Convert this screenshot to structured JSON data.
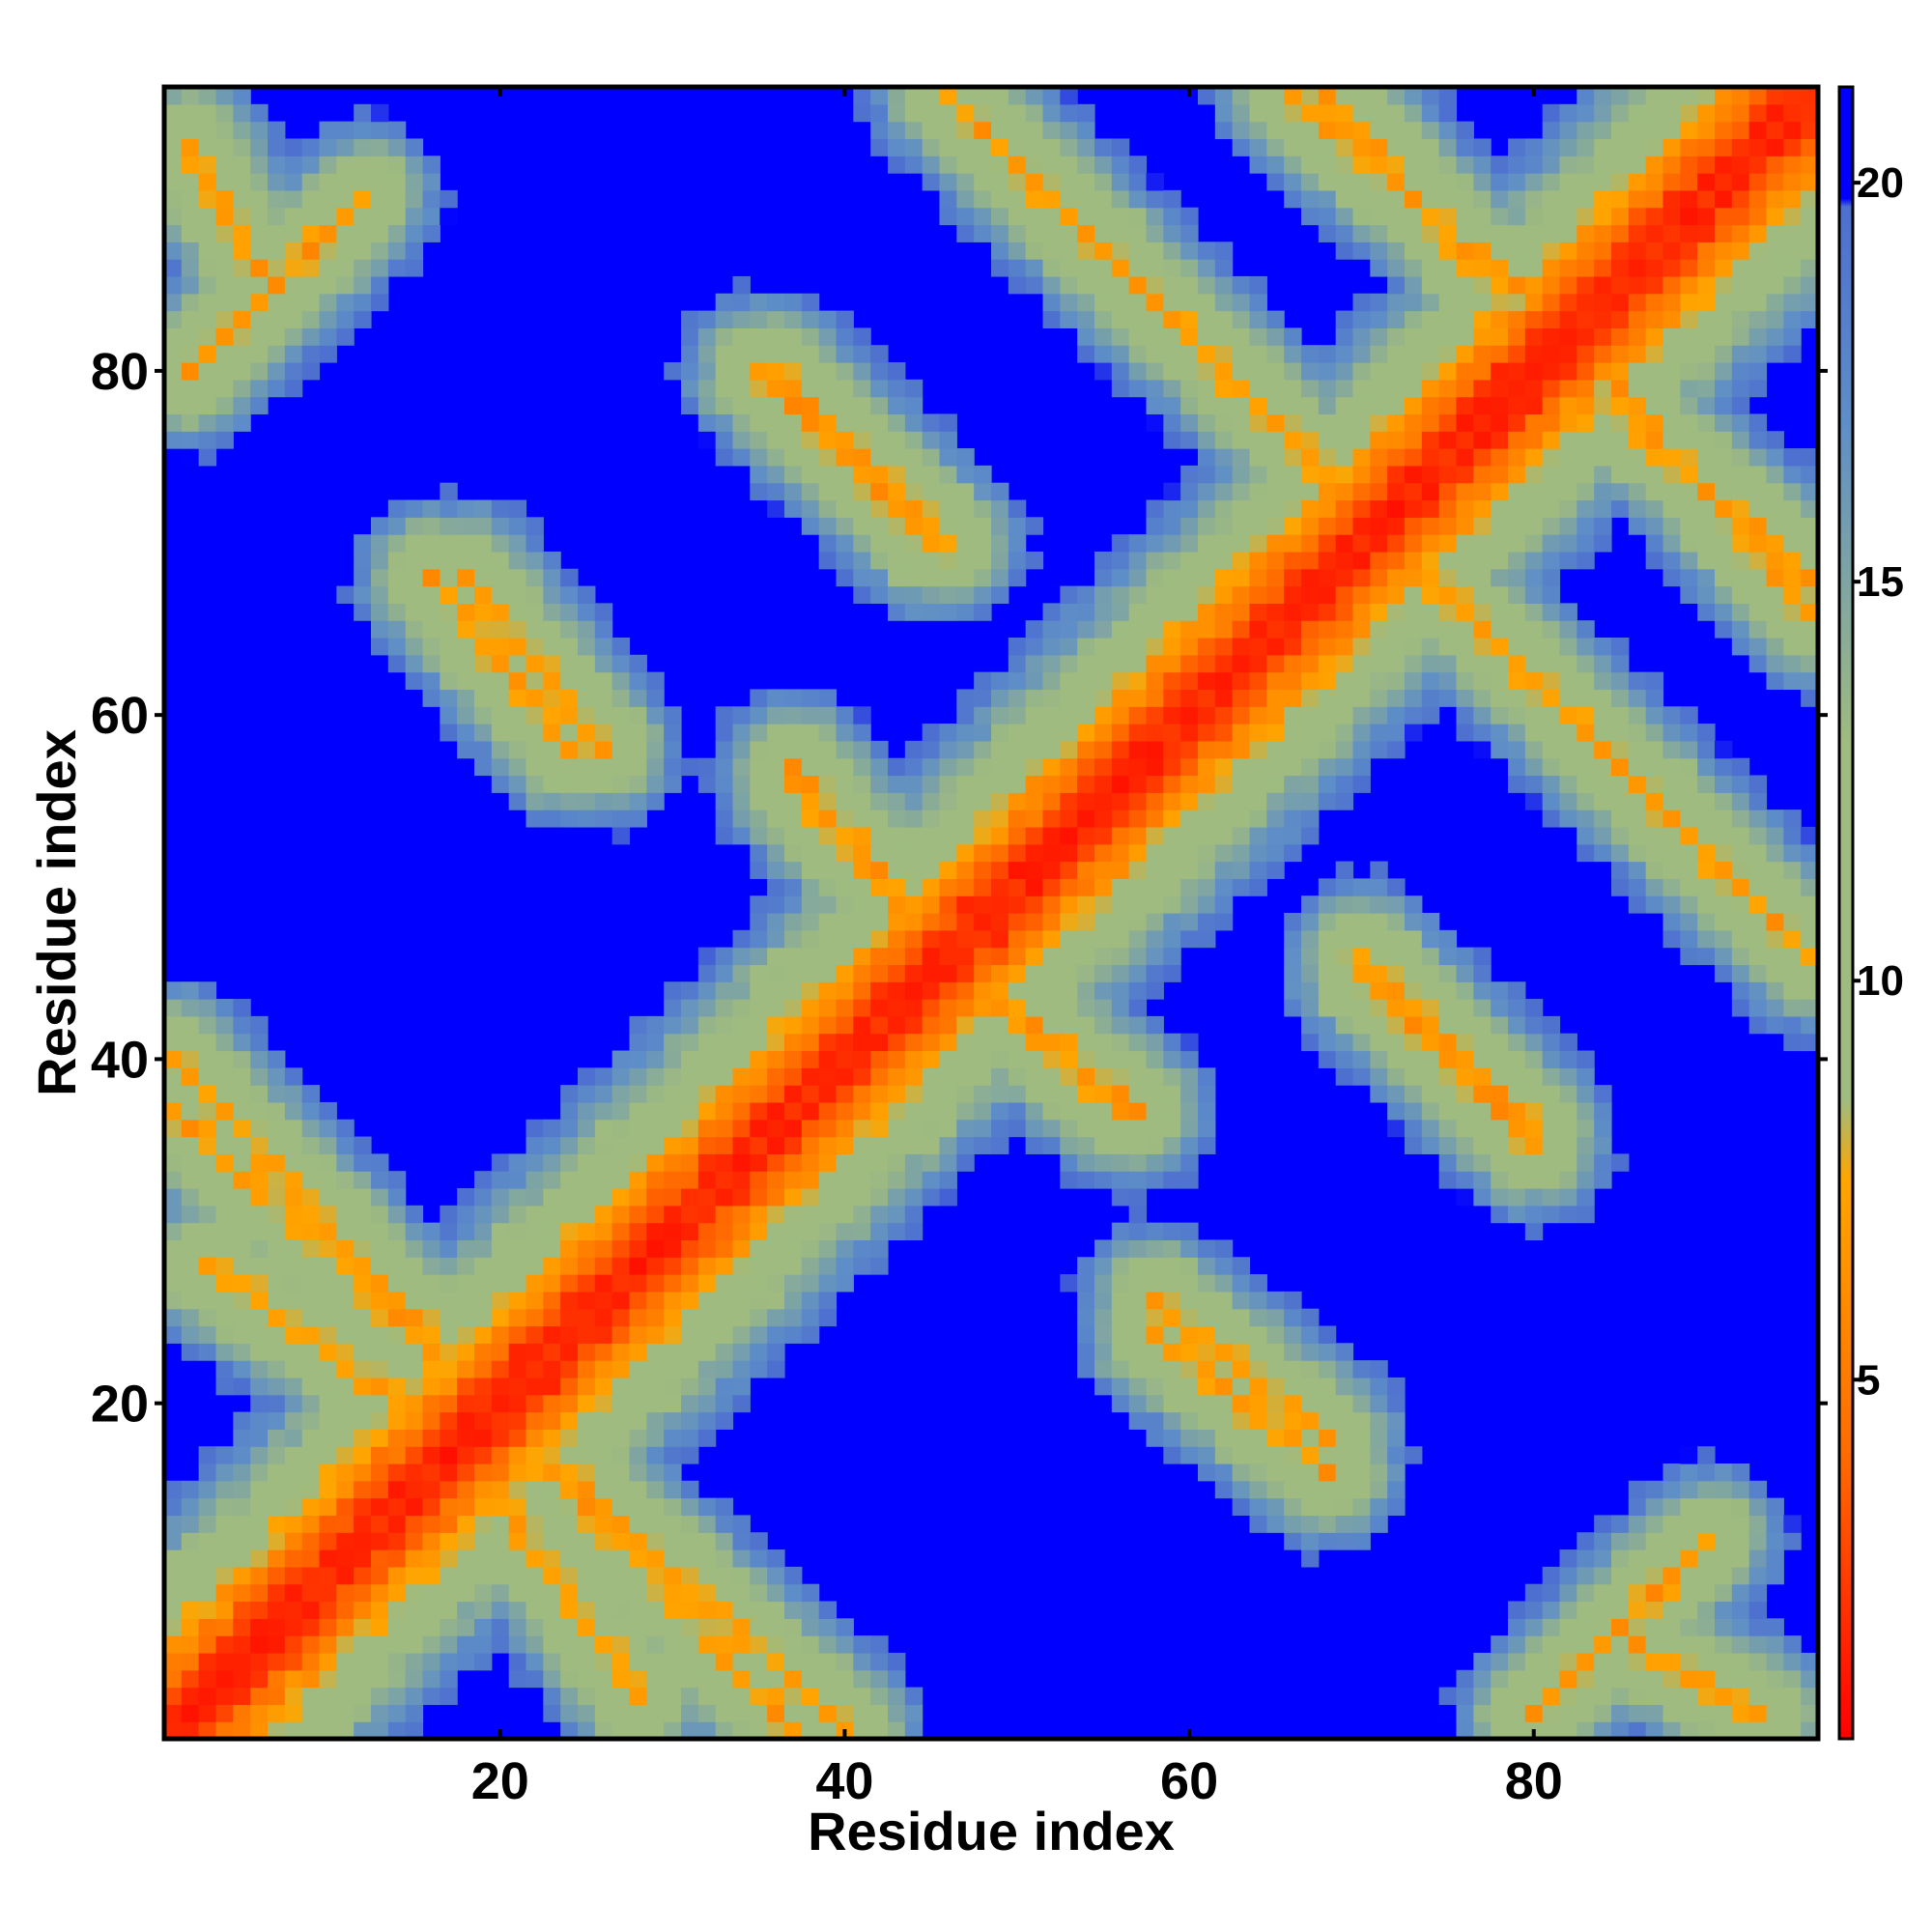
{
  "chart_data": {
    "type": "heatmap",
    "title": "",
    "xlabel": "Residue index",
    "ylabel": "Residue index",
    "n_residues": 96,
    "x_range": [
      0.5,
      96.5
    ],
    "y_range": [
      0.5,
      96.5
    ],
    "x_ticks": [
      20,
      40,
      60,
      80
    ],
    "y_ticks": [
      20,
      40,
      60,
      80
    ],
    "colorbar": {
      "ticks": [
        5,
        10,
        15,
        20
      ],
      "range": [
        0.5,
        21.2
      ],
      "stops": [
        {
          "value": 0.5,
          "color": "#ff0000"
        },
        {
          "value": 4,
          "color": "#ff6a00"
        },
        {
          "value": 7.5,
          "color": "#ffa500"
        },
        {
          "value": 8.5,
          "color": "#9fbb7f"
        },
        {
          "value": 13,
          "color": "#9fbb7f"
        },
        {
          "value": 17,
          "color": "#5e8ec7"
        },
        {
          "value": 19.7,
          "color": "#4d6fd0"
        },
        {
          "value": 19.8,
          "color": "#0000ff"
        },
        {
          "value": 21.2,
          "color": "#0000ff"
        }
      ]
    },
    "values_description": "Symmetric residue-residue distance matrix: main diagonal near 0 (red), secondary anti-diagonal contact bands (orange), green/blue-gray intermediate shells, deep blue (>20) far-apart regions",
    "pattern": {
      "diagonal": [
        [
          1,
          1
        ],
        [
          96,
          96
        ]
      ],
      "contact_bands": [
        [
          [
            1,
            40
          ],
          [
            37,
            1
          ]
        ],
        [
          [
            46,
            96
          ],
          [
            96,
            46
          ]
        ],
        [
          [
            2,
            93
          ],
          [
            6,
            86
          ]
        ],
        [
          [
            18,
            68
          ],
          [
            26,
            58
          ]
        ],
        [
          [
            36,
            80
          ],
          [
            46,
            70
          ]
        ],
        [
          [
            37,
            56
          ],
          [
            46,
            46
          ]
        ],
        [
          [
            46,
            46
          ],
          [
            57,
            37
          ]
        ],
        [
          [
            66,
            96
          ],
          [
            80,
            84
          ]
        ],
        [
          [
            80,
            82
          ],
          [
            96,
            68
          ]
        ],
        [
          [
            70,
            45
          ],
          [
            80,
            35
          ]
        ],
        [
          [
            58,
            24
          ],
          [
            68,
            16
          ]
        ],
        [
          [
            16,
            20
          ],
          [
            28,
            3
          ]
        ],
        [
          [
            80,
            2
          ],
          [
            90,
            12
          ]
        ]
      ]
    }
  }
}
